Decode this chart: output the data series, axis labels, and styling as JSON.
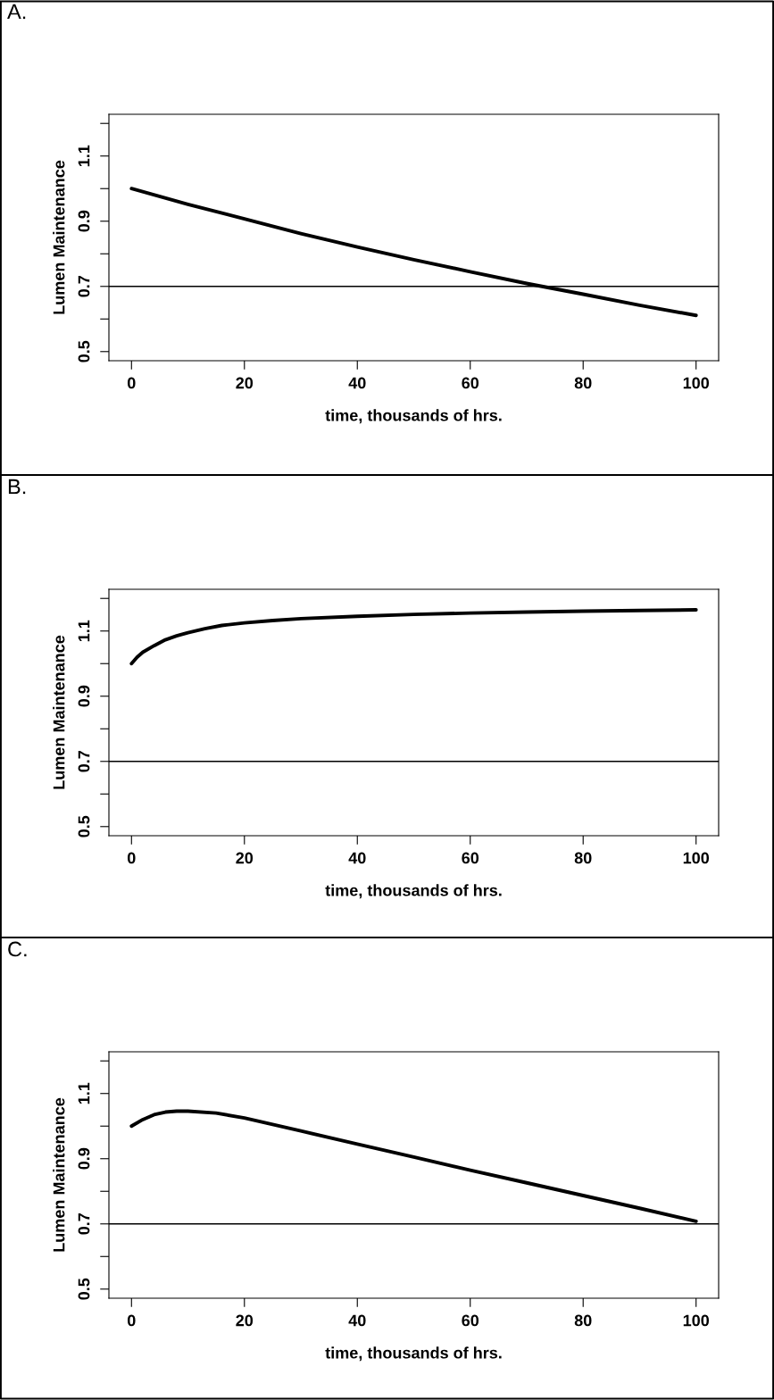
{
  "chart_data": [
    {
      "type": "line",
      "title": "A.",
      "xlabel": "time, thousands of hrs.",
      "ylabel": "Lumen Maintenance",
      "x": [
        0,
        10,
        20,
        30,
        40,
        50,
        60,
        70,
        80,
        90,
        100
      ],
      "series": [
        {
          "color": "#000000",
          "values": [
            1.0,
            0.952,
            0.907,
            0.862,
            0.821,
            0.782,
            0.745,
            0.709,
            0.676,
            0.642,
            0.611
          ]
        }
      ],
      "xlim": [
        -4,
        104
      ],
      "xticks": [
        0,
        20,
        40,
        60,
        80,
        100
      ],
      "ylim": [
        0.472,
        1.228
      ],
      "yticks": [
        0.5,
        {
          "value": 0.6,
          "label": null
        },
        0.7,
        {
          "value": 0.8,
          "label": null
        },
        0.9,
        {
          "value": 1.0,
          "label": null
        },
        1.1,
        {
          "value": 1.2,
          "label": null
        }
      ],
      "ref_lines": [
        {
          "axis": "y",
          "value": 0.7,
          "color": "#000000"
        }
      ],
      "grid": false,
      "legend": false
    },
    {
      "type": "line",
      "title": "B.",
      "xlabel": "time, thousands of hrs.",
      "ylabel": "Lumen Maintenance",
      "x": [
        0,
        1,
        2,
        4,
        6,
        8,
        10,
        13,
        16,
        20,
        25,
        30,
        40,
        50,
        60,
        70,
        80,
        90,
        100
      ],
      "series": [
        {
          "color": "#000000",
          "values": [
            1.0,
            1.02,
            1.035,
            1.055,
            1.073,
            1.085,
            1.095,
            1.107,
            1.117,
            1.125,
            1.132,
            1.138,
            1.145,
            1.151,
            1.155,
            1.158,
            1.161,
            1.163,
            1.165
          ]
        }
      ],
      "xlim": [
        -4,
        104
      ],
      "xticks": [
        0,
        20,
        40,
        60,
        80,
        100
      ],
      "ylim": [
        0.472,
        1.228
      ],
      "yticks": [
        0.5,
        {
          "value": 0.6,
          "label": null
        },
        0.7,
        {
          "value": 0.8,
          "label": null
        },
        0.9,
        {
          "value": 1.0,
          "label": null
        },
        1.1,
        {
          "value": 1.2,
          "label": null
        }
      ],
      "ref_lines": [
        {
          "axis": "y",
          "value": 0.7,
          "color": "#000000"
        }
      ],
      "grid": false,
      "legend": false
    },
    {
      "type": "line",
      "title": "C.",
      "xlabel": "time, thousands of hrs.",
      "ylabel": "Lumen Maintenance",
      "x": [
        0,
        2,
        4,
        6,
        8,
        10,
        15,
        20,
        30,
        40,
        50,
        60,
        70,
        80,
        90,
        100
      ],
      "series": [
        {
          "color": "#000000",
          "values": [
            1.0,
            1.02,
            1.035,
            1.043,
            1.046,
            1.046,
            1.04,
            1.025,
            0.985,
            0.945,
            0.905,
            0.865,
            0.826,
            0.787,
            0.748,
            0.708
          ]
        }
      ],
      "xlim": [
        -4,
        104
      ],
      "xticks": [
        0,
        20,
        40,
        60,
        80,
        100
      ],
      "ylim": [
        0.472,
        1.228
      ],
      "yticks": [
        0.5,
        {
          "value": 0.6,
          "label": null
        },
        0.7,
        {
          "value": 0.8,
          "label": null
        },
        0.9,
        {
          "value": 1.0,
          "label": null
        },
        1.1,
        {
          "value": 1.2,
          "label": null
        }
      ],
      "ref_lines": [
        {
          "axis": "y",
          "value": 0.7,
          "color": "#000000"
        }
      ],
      "grid": false,
      "legend": false
    }
  ]
}
